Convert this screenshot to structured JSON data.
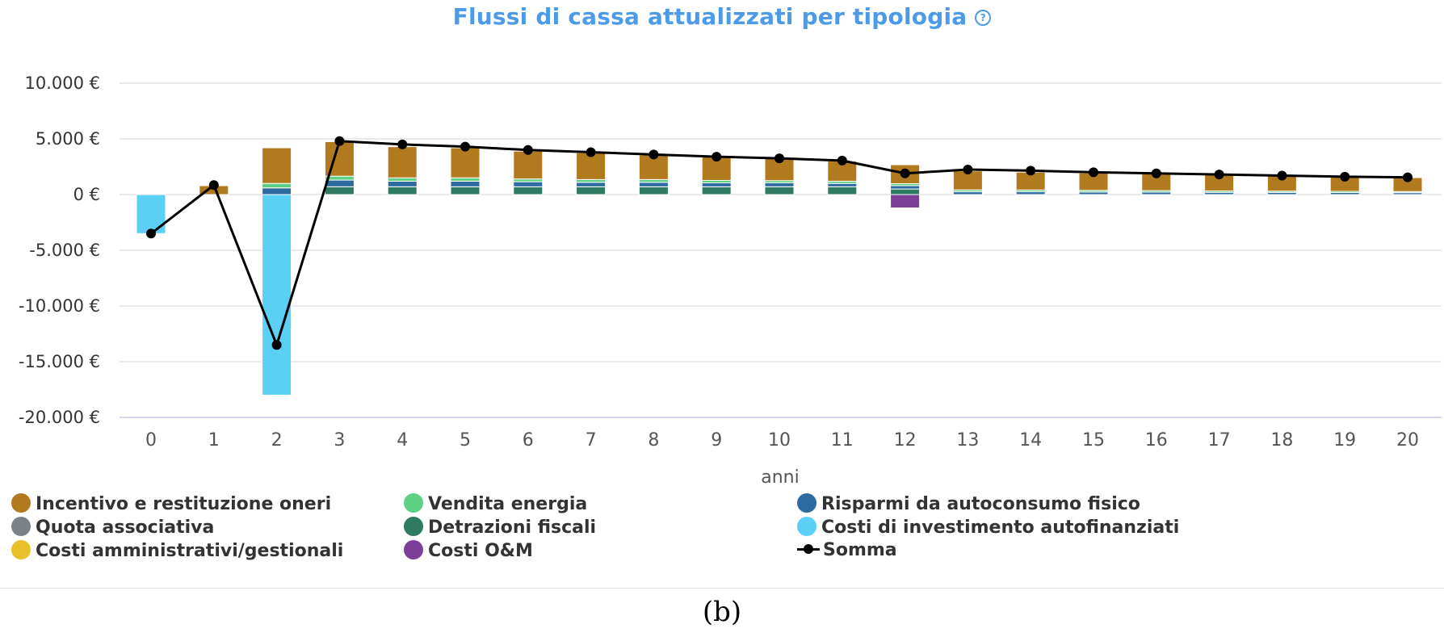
{
  "title": "Flussi di cassa attualizzati per tipologia",
  "caption": "(b)",
  "chart_data": {
    "type": "bar",
    "stacked": true,
    "xlabel": "anni",
    "ylabel": "",
    "ylim": [
      -20000,
      10000
    ],
    "yticks": [
      10000,
      5000,
      0,
      -5000,
      -10000,
      -15000,
      -20000
    ],
    "ytick_labels": [
      "10.000 €",
      "5.000 €",
      "0 €",
      "-5.000 €",
      "-10.000 €",
      "-15.000 €",
      "-20.000 €"
    ],
    "grid": true,
    "legend_position": "bottom",
    "categories": [
      "0",
      "1",
      "2",
      "3",
      "4",
      "5",
      "6",
      "7",
      "8",
      "9",
      "10",
      "11",
      "12",
      "13",
      "14",
      "15",
      "16",
      "17",
      "18",
      "19",
      "20"
    ],
    "series": [
      {
        "name": "Detrazioni fiscali",
        "color": "#2e7a63",
        "values": [
          0,
          0,
          0,
          700,
          700,
          700,
          700,
          700,
          700,
          700,
          700,
          700,
          500,
          0,
          0,
          0,
          0,
          0,
          0,
          0,
          0
        ]
      },
      {
        "name": "Risparmi da autoconsumo fisico",
        "color": "#2c6aa0",
        "values": [
          0,
          0,
          600,
          600,
          500,
          500,
          450,
          400,
          400,
          350,
          350,
          300,
          300,
          250,
          250,
          230,
          220,
          200,
          190,
          180,
          170
        ]
      },
      {
        "name": "Vendita energia",
        "color": "#5dd083",
        "values": [
          0,
          0,
          400,
          350,
          300,
          300,
          250,
          250,
          250,
          220,
          200,
          200,
          180,
          170,
          160,
          150,
          140,
          130,
          120,
          110,
          100
        ]
      },
      {
        "name": "Quota associativa",
        "color": "#7a8288",
        "values": [
          0,
          0,
          0,
          0,
          0,
          0,
          0,
          0,
          0,
          0,
          0,
          0,
          0,
          0,
          0,
          0,
          0,
          0,
          0,
          0,
          0
        ]
      },
      {
        "name": "Costi amministrativi/gestionali",
        "color": "#e8c12a",
        "values": [
          0,
          0,
          0,
          0,
          0,
          0,
          0,
          0,
          0,
          0,
          0,
          0,
          0,
          0,
          0,
          0,
          0,
          0,
          0,
          0,
          0
        ]
      },
      {
        "name": "Incentivo e restituzione oneri",
        "color": "#b27a1f",
        "values": [
          0,
          800,
          3200,
          3100,
          2800,
          2700,
          2500,
          2400,
          2200,
          2100,
          2000,
          1800,
          1700,
          1700,
          1600,
          1550,
          1500,
          1450,
          1400,
          1300,
          1250
        ]
      },
      {
        "name": "Costi di investimento autofinanziati",
        "color": "#5ccff5",
        "values": [
          -3500,
          0,
          -18000,
          0,
          0,
          0,
          0,
          0,
          0,
          0,
          0,
          0,
          0,
          0,
          0,
          0,
          0,
          0,
          0,
          0,
          0
        ]
      },
      {
        "name": "Costi O&M",
        "color": "#7b3f98",
        "values": [
          0,
          0,
          0,
          0,
          0,
          0,
          0,
          0,
          0,
          0,
          0,
          0,
          -1200,
          0,
          0,
          0,
          0,
          0,
          0,
          0,
          0
        ]
      },
      {
        "name": "Somma",
        "type": "line",
        "color": "#000000",
        "values": [
          -3500,
          850,
          -13500,
          4800,
          4500,
          4300,
          4000,
          3800,
          3600,
          3400,
          3250,
          3050,
          1900,
          2250,
          2150,
          2000,
          1900,
          1800,
          1700,
          1600,
          1550
        ]
      }
    ]
  },
  "legend": [
    {
      "label": "Incentivo e restituzione oneri",
      "color": "#b27a1f",
      "marker": "dot"
    },
    {
      "label": "Vendita energia",
      "color": "#5dd083",
      "marker": "dot"
    },
    {
      "label": "Risparmi da autoconsumo fisico",
      "color": "#2c6aa0",
      "marker": "dot"
    },
    {
      "label": "Quota associativa",
      "color": "#7a8288",
      "marker": "dot"
    },
    {
      "label": "Detrazioni fiscali",
      "color": "#2e7a63",
      "marker": "dot"
    },
    {
      "label": "Costi di investimento autofinanziati",
      "color": "#5ccff5",
      "marker": "dot"
    },
    {
      "label": "Costi amministrativi/gestionali",
      "color": "#e8c12a",
      "marker": "dot"
    },
    {
      "label": "Costi O&M",
      "color": "#7b3f98",
      "marker": "dot"
    },
    {
      "label": "Somma",
      "color": "#000000",
      "marker": "line"
    }
  ]
}
